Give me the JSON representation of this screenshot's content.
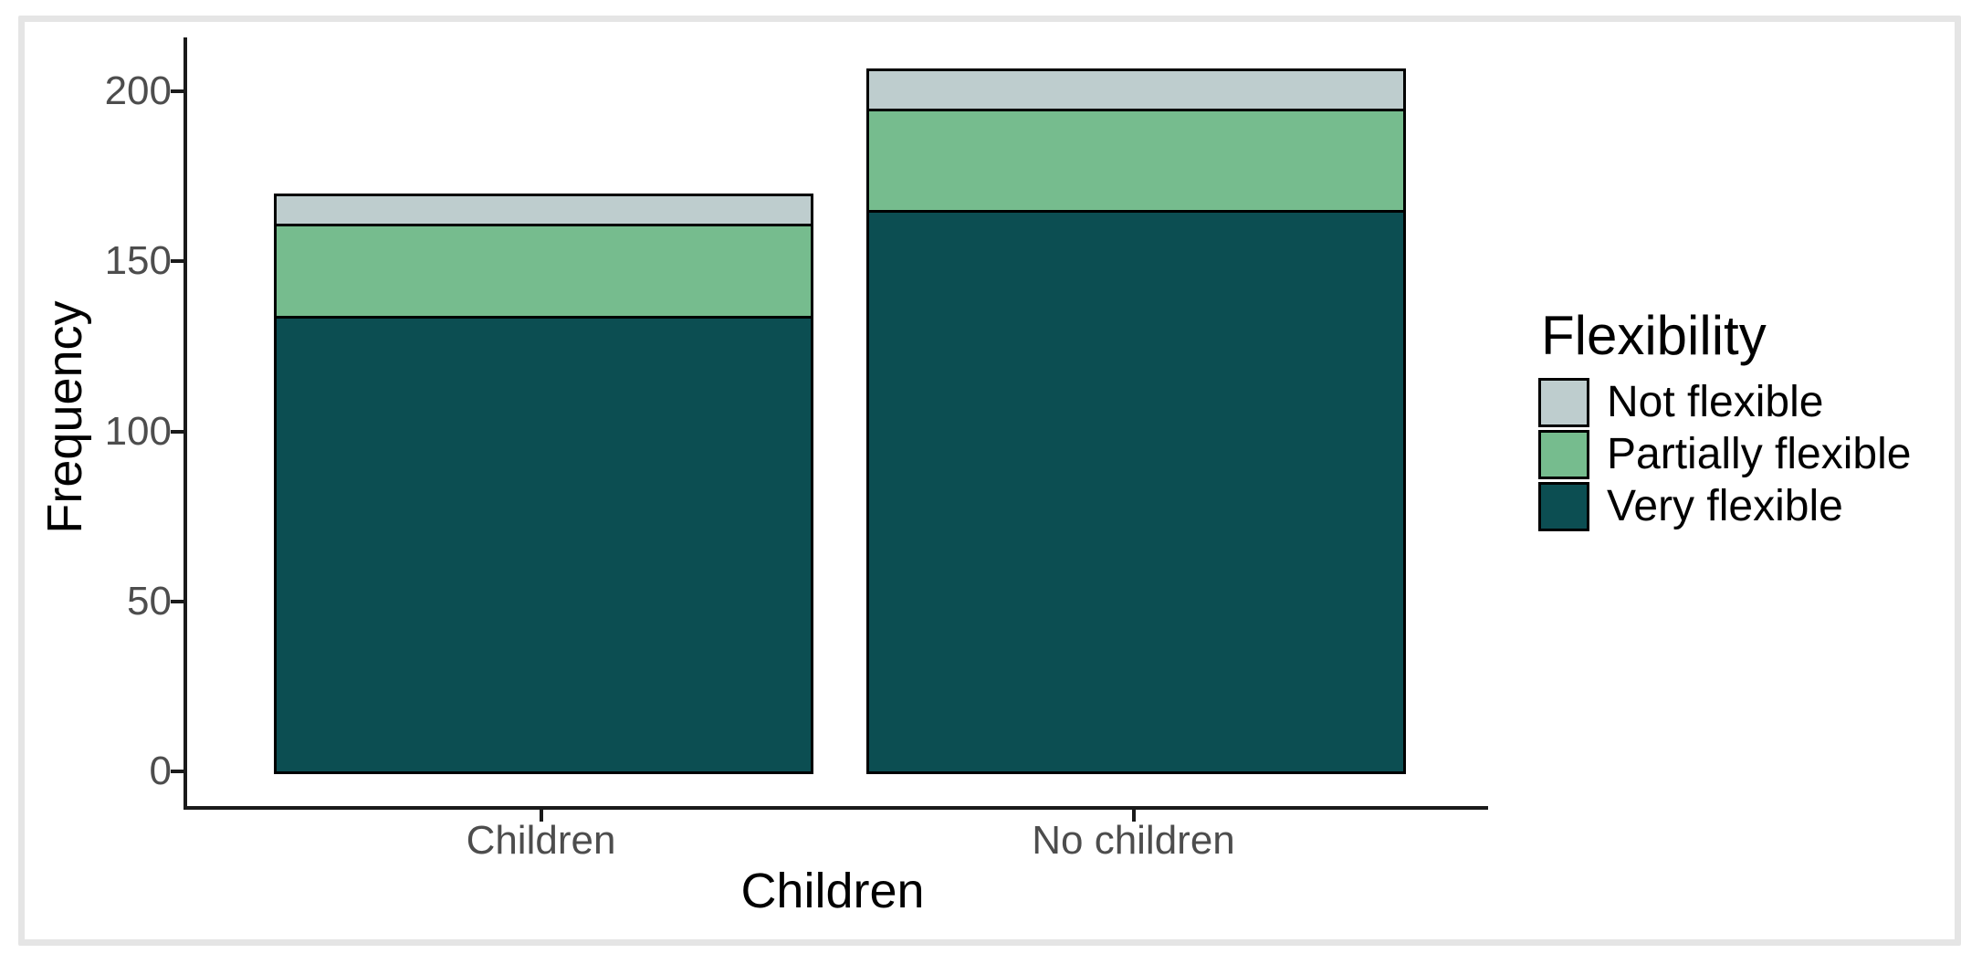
{
  "figure": {
    "background": "#FFFFFF",
    "frame_color": "#E5E5E5"
  },
  "chart_data": {
    "type": "bar",
    "stacked": true,
    "orientation": "vertical",
    "title": "",
    "xlabel": "Children",
    "ylabel": "Frequency",
    "categories": [
      "Children",
      "No children"
    ],
    "series": [
      {
        "name": "Not flexible",
        "color": "#BECDCE",
        "values": [
          8,
          11
        ]
      },
      {
        "name": "Partially flexible",
        "color": "#76BC8E",
        "values": [
          27,
          30
        ]
      },
      {
        "name": "Very flexible",
        "color": "#0C4E52",
        "values": [
          134,
          165
        ]
      }
    ],
    "stack_totals": [
      169,
      206
    ],
    "yticks": [
      0,
      50,
      100,
      150,
      200
    ],
    "ylim": [
      0,
      216
    ],
    "grid": false,
    "legend": {
      "title": "Flexibility",
      "position": "right",
      "entries": [
        "Not flexible",
        "Partially flexible",
        "Very flexible"
      ]
    },
    "bar_outline_color": "#000000",
    "axis_line_color": "#1A1A1A",
    "tick_text_color": "#4D4D4D",
    "title_text_color": "#000000"
  }
}
